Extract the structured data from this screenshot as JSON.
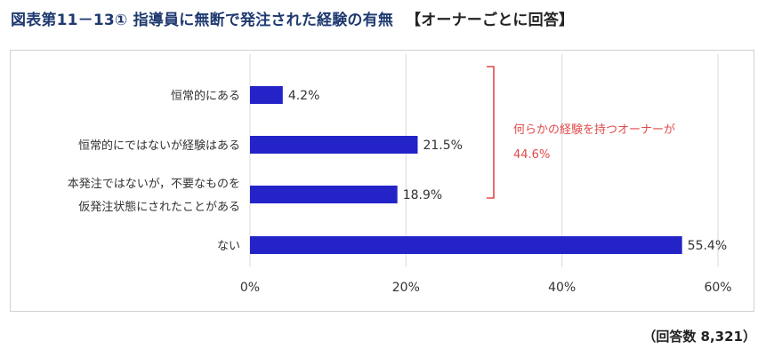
{
  "title": {
    "main": "図表第11－13①  指導員に無断で発注された経験の有無",
    "sub": "【オーナーごとに回答】"
  },
  "footnote": "（回答数 8,321）",
  "chart_data": {
    "type": "bar",
    "orientation": "horizontal",
    "categories": [
      [
        "恒常的にある"
      ],
      [
        "恒常的にではないが経験はある"
      ],
      [
        "本発注ではないが，不要なものを",
        "仮発注状態にされたことがある"
      ],
      [
        "ない"
      ]
    ],
    "values": [
      4.2,
      21.5,
      18.9,
      55.4
    ],
    "value_labels": [
      "4.2%",
      "21.5%",
      "18.9%",
      "55.4%"
    ],
    "xlim": [
      0,
      60
    ],
    "x_ticks": [
      "0%",
      "20%",
      "40%",
      "60%"
    ],
    "x_tick_values": [
      0,
      20,
      40,
      60
    ],
    "grid": true,
    "bar_color": "#2323c8",
    "annotation": {
      "text_line1": "何らかの経験を持つオーナーが",
      "text_line2": "44.6%",
      "color": "#e04a4a",
      "bracket_categories": [
        0,
        1,
        2
      ]
    }
  }
}
